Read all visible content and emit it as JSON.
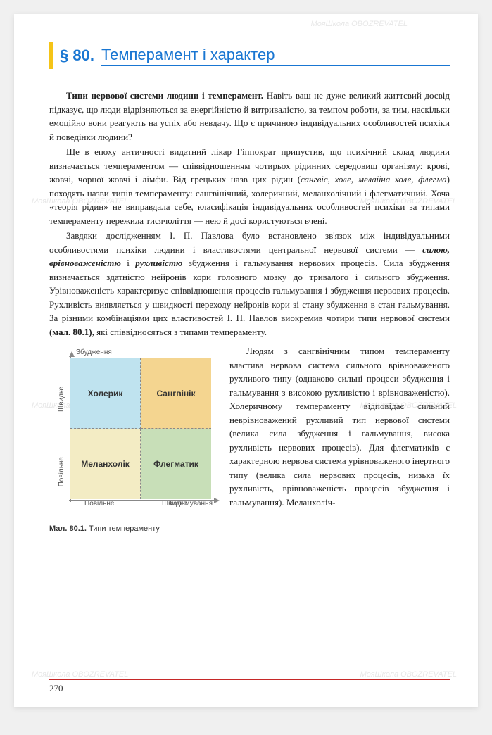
{
  "watermark": "МояШкола OBOZREVATEL",
  "section": {
    "prefix": "§ 80.",
    "title": "Темперамент і характер"
  },
  "para1": {
    "lead": "Типи нервової системи людини і темперамент.",
    "rest": " Навіть ваш не дуже великий життєвий досвід підказує, що люди відрізняються за енергійністю й витривалістю, за темпом роботи, за тим, наскільки емоційно вони реагують на успіх або невдачу. Що є причиною індивідуальних особливостей психіки й поведінки людини?"
  },
  "para2": {
    "t1": "Ще в епоху античності видатний лікар Гіппократ припустив, що психічний склад людини визначається темпераментом — співвідношенням чотирьох рідинних середовищ організму: крові, жовчі, чорної жовчі і лімфи. Від грецьких назв цих рідин (",
    "i1": "сангвіс, холе, мелайна холе, флегма",
    "t2": ") походять назви типів темпераменту: сангвінічний, холеричний, меланхолічний і флегматичний. Хоча «теорія рідин» не виправдала себе, класифікація індивідуальних особливостей психіки за типами темпераменту пережила тисячоліття — нею й досі користуються вчені."
  },
  "para3": {
    "t1": "Завдяки дослідженням І. П. Павлова було встановлено зв'язок між індивідуальними особливостями психіки людини і властивостями центральної нервової системи — ",
    "b1": "силою, врівноваженістю",
    "t2": " і ",
    "b2": "рухливістю",
    "t3": " збудження і гальмування нервових процесів. Сила збудження визначається здатністю нейронів кори головного мозку до тривалого і сильного збудження. Урівноваженість характеризує співвідношення процесів гальмування і збудження нервових процесів. Рухливість виявляється у швидкості переходу нейронів кори зі стану збудження в стан гальмування. За різними комбінаціями цих властивостей І. П. Павлов виокремив чотири типи нервової системи ",
    "ref": "(мал. 80.1)",
    "t4": ", які співвідносяться з типами темпераменту."
  },
  "para4": "Людям з сангвінічним типом темпераменту властива нервова система сильного врівноваженого рухливого типу (однаково сильні процеси збудження і гальмування з високою рухливістю і врівноваженістю). Холеричному темпераменту відповідає сильний неврівноважений рухливий тип нервової системи (велика сила збудження і гальмування, висока рухливість нервових процесів). Для флегматиків є характерною нервова система урівноваженого інертного типу (велика сила нервових процесів, низька їх рухливість, врівноваженість процесів збудження і гальмування). Меланхоліч-",
  "diagram": {
    "axis_top": "Збудження",
    "axis_right": "Гальмування",
    "axis_y_fast": "Швидке",
    "axis_y_slow": "Повільне",
    "axis_x_slow": "Повільне",
    "axis_x_fast": "Швидке",
    "q1": {
      "label": "Холерик",
      "color": "#bfe3ef"
    },
    "q2": {
      "label": "Сангвінік",
      "color": "#f4d590"
    },
    "q3": {
      "label": "Меланхолік",
      "color": "#f3ecc4"
    },
    "q4": {
      "label": "Флегматик",
      "color": "#c8dfb8"
    }
  },
  "caption": {
    "num": "Мал. 80.1.",
    "text": " Типи темпераменту"
  },
  "page_number": "270"
}
